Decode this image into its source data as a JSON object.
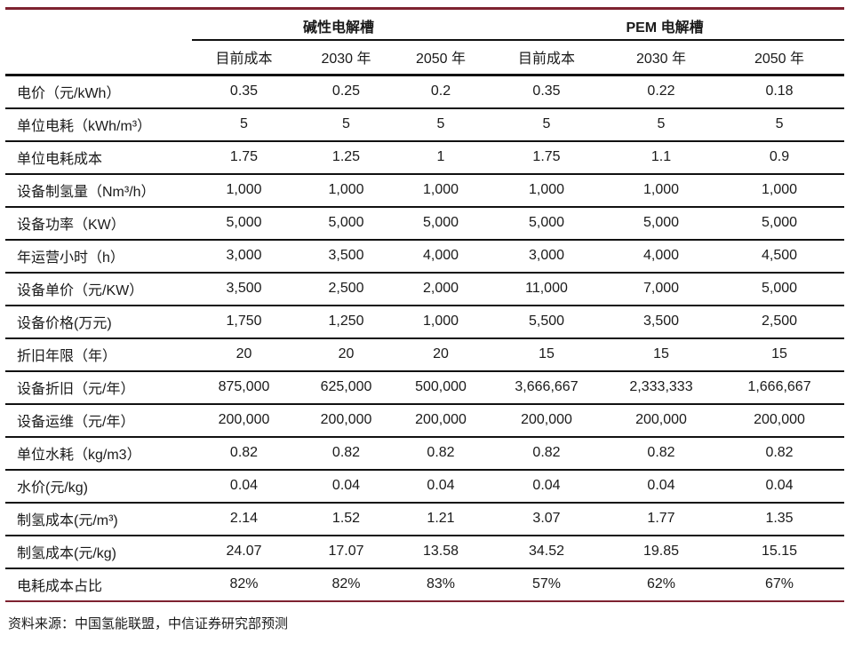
{
  "colors": {
    "accent_line": "#7e2230",
    "border": "#111111",
    "text": "#1a1a1a"
  },
  "table": {
    "group_headers": [
      {
        "label": "碱性电解槽"
      },
      {
        "label": "PEM 电解槽"
      }
    ],
    "sub_headers": [
      "目前成本",
      "2030 年",
      "2050 年",
      "目前成本",
      "2030 年",
      "2050 年"
    ],
    "rows": [
      {
        "label": "电价（元/kWh）",
        "values": [
          "0.35",
          "0.25",
          "0.2",
          "0.35",
          "0.22",
          "0.18"
        ]
      },
      {
        "label": "单位电耗（kWh/m³）",
        "values": [
          "5",
          "5",
          "5",
          "5",
          "5",
          "5"
        ]
      },
      {
        "label": "单位电耗成本",
        "values": [
          "1.75",
          "1.25",
          "1",
          "1.75",
          "1.1",
          "0.9"
        ]
      },
      {
        "label": "设备制氢量（Nm³/h）",
        "values": [
          "1,000",
          "1,000",
          "1,000",
          "1,000",
          "1,000",
          "1,000"
        ]
      },
      {
        "label": "设备功率（KW）",
        "values": [
          "5,000",
          "5,000",
          "5,000",
          "5,000",
          "5,000",
          "5,000"
        ]
      },
      {
        "label": "年运营小时（h）",
        "values": [
          "3,000",
          "3,500",
          "4,000",
          "3,000",
          "4,000",
          "4,500"
        ]
      },
      {
        "label": "设备单价（元/KW）",
        "values": [
          "3,500",
          "2,500",
          "2,000",
          "11,000",
          "7,000",
          "5,000"
        ]
      },
      {
        "label": "设备价格(万元)",
        "values": [
          "1,750",
          "1,250",
          "1,000",
          "5,500",
          "3,500",
          "2,500"
        ]
      },
      {
        "label": "折旧年限（年）",
        "values": [
          "20",
          "20",
          "20",
          "15",
          "15",
          "15"
        ]
      },
      {
        "label": "设备折旧（元/年）",
        "values": [
          "875,000",
          "625,000",
          "500,000",
          "3,666,667",
          "2,333,333",
          "1,666,667"
        ]
      },
      {
        "label": "设备运维（元/年）",
        "values": [
          "200,000",
          "200,000",
          "200,000",
          "200,000",
          "200,000",
          "200,000"
        ]
      },
      {
        "label": "单位水耗（kg/m3）",
        "values": [
          "0.82",
          "0.82",
          "0.82",
          "0.82",
          "0.82",
          "0.82"
        ]
      },
      {
        "label": "水价(元/kg)",
        "values": [
          "0.04",
          "0.04",
          "0.04",
          "0.04",
          "0.04",
          "0.04"
        ]
      },
      {
        "label": "制氢成本(元/m³)",
        "values": [
          "2.14",
          "1.52",
          "1.21",
          "3.07",
          "1.77",
          "1.35"
        ]
      },
      {
        "label": "制氢成本(元/kg)",
        "values": [
          "24.07",
          "17.07",
          "13.58",
          "34.52",
          "19.85",
          "15.15"
        ]
      },
      {
        "label": "电耗成本占比",
        "values": [
          "82%",
          "82%",
          "83%",
          "57%",
          "62%",
          "67%"
        ]
      }
    ],
    "source_note": "资料来源：中国氢能联盟，中信证券研究部预测"
  }
}
